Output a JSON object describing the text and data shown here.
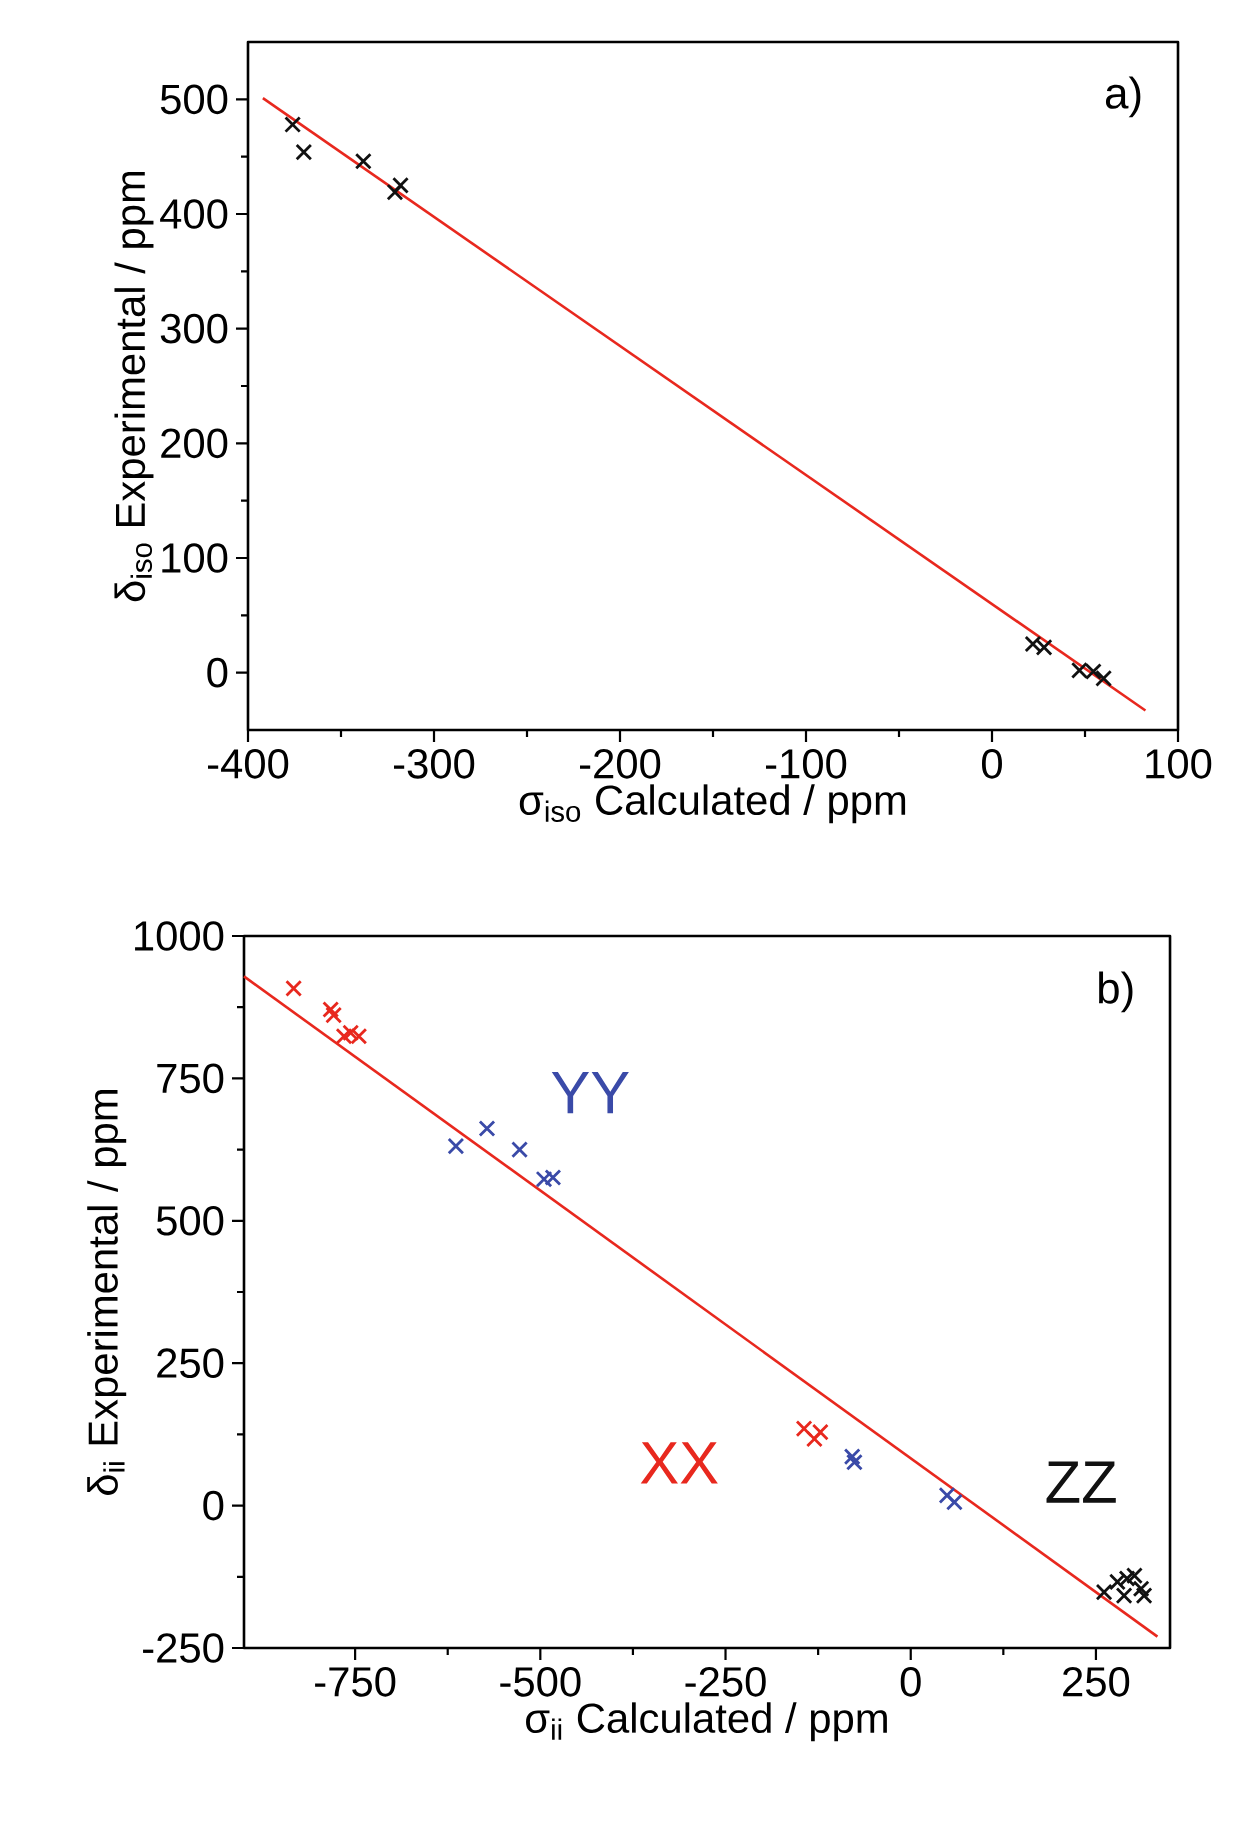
{
  "chart_data": [
    {
      "type": "scatter",
      "xlabel": "σ$_{iso}$ Calculated / ppm",
      "ylabel": "δ$_{iso}$ Experimental / ppm",
      "xlim": [
        -400,
        100
      ],
      "ylim": [
        -50,
        550
      ],
      "xticks": [
        -400,
        -300,
        -200,
        -100,
        0,
        100
      ],
      "yticks": [
        0,
        100,
        200,
        300,
        400,
        500
      ],
      "marker": "cross",
      "annotations": [
        "a)"
      ],
      "series": [
        {
          "color": "#111111",
          "x": [
            -376,
            -370,
            -338,
            -318,
            -321,
            22,
            24,
            28,
            47,
            54.5,
            60
          ],
          "values": [
            478,
            454,
            446,
            425,
            419,
            25,
            null,
            22,
            2,
            1,
            -5
          ]
        },
        {
          "type": "line",
          "marker": "none",
          "color": "#e8281e",
          "x": [
            -392,
            82.5
          ],
          "values": [
            501,
            -33
          ]
        }
      ]
    },
    {
      "type": "scatter",
      "xlabel": "σ$_{ii}$ Calculated / ppm",
      "ylabel": "δ$_{ii}$ Experimental / ppm",
      "xlim": [
        -900,
        350
      ],
      "ylim": [
        -250,
        1000
      ],
      "xticks": [
        -750,
        -500,
        -250,
        0,
        250
      ],
      "yticks": [
        -250,
        0,
        250,
        500,
        750,
        1000
      ],
      "marker": "cross",
      "annotations": [
        "b)"
      ],
      "series": [
        {
          "name": "XX",
          "color": "#e8281e",
          "x": [
            -833,
            -783,
            -779,
            -756,
            -745,
            -765,
            -144,
            -130,
            -122
          ],
          "values": [
            908,
            871,
            861,
            830,
            824,
            824,
            135,
            117,
            129
          ]
        },
        {
          "name": "YY",
          "color": "#3a4aa8",
          "x": [
            -614,
            -572,
            -528,
            -495,
            -483,
            -79,
            -76,
            49,
            59
          ],
          "values": [
            631,
            662,
            625,
            573,
            576,
            86,
            76,
            18,
            6
          ]
        },
        {
          "name": "ZZ",
          "color": "#111111",
          "x": [
            261,
            279,
            292,
            311,
            288,
            302,
            315
          ],
          "values": [
            -152,
            -134,
            -128,
            -146,
            -158,
            -123,
            -158
          ]
        },
        {
          "type": "line",
          "marker": "none",
          "color": "#e8281e",
          "x": [
            -900,
            333
          ],
          "values": [
            929,
            -230
          ]
        }
      ]
    }
  ]
}
